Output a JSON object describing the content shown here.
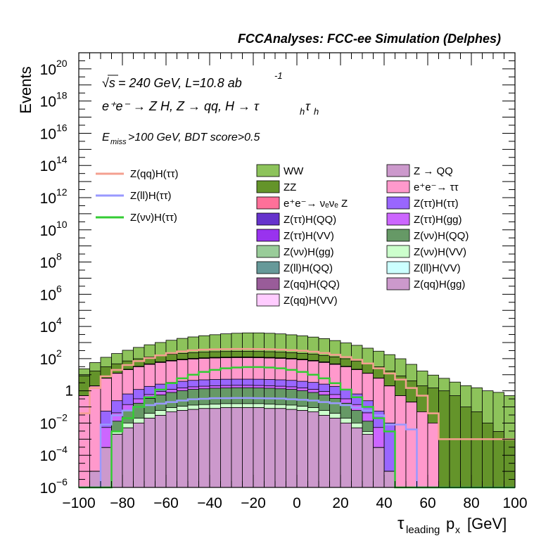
{
  "chart_data": {
    "type": "bar",
    "title": "FCCAnalyses: FCC-ee Simulation (Delphes)",
    "xlabel_main": "τ",
    "xlabel_sub": "leading",
    "xlabel_var": "p",
    "xlabel_varsub": "x",
    "xlabel_unit": "[GeV]",
    "ylabel": "Events",
    "xlim": [
      -100,
      100
    ],
    "ylim": [
      1e-06,
      1e+21
    ],
    "yscale": "log",
    "bin_width": 5,
    "x_ticks": [
      -100,
      -80,
      -60,
      -40,
      -20,
      0,
      20,
      40,
      60,
      80,
      100
    ],
    "x_tick_labels": [
      "−100",
      "−80",
      "−60",
      "−40",
      "−20",
      "0",
      "20",
      "40",
      "60",
      "80",
      "100"
    ],
    "y_ticks": [
      {
        "base": "10",
        "exp": "−6",
        "value": 1e-06
      },
      {
        "base": "10",
        "exp": "−4",
        "value": 0.0001
      },
      {
        "base": "10",
        "exp": "−2",
        "value": 0.01
      },
      {
        "base": "1",
        "exp": "",
        "value": 1
      },
      {
        "base": "10",
        "exp": "2",
        "value": 100.0
      },
      {
        "base": "10",
        "exp": "4",
        "value": 10000.0
      },
      {
        "base": "10",
        "exp": "6",
        "value": 1000000.0
      },
      {
        "base": "10",
        "exp": "8",
        "value": 100000000.0
      },
      {
        "base": "10",
        "exp": "10",
        "value": 10000000000.0
      },
      {
        "base": "10",
        "exp": "12",
        "value": 1000000000000.0
      },
      {
        "base": "10",
        "exp": "14",
        "value": 100000000000000.0
      },
      {
        "base": "10",
        "exp": "16",
        "value": 1e+16
      },
      {
        "base": "10",
        "exp": "18",
        "value": 1e+18
      },
      {
        "base": "10",
        "exp": "20",
        "value": 1e+20
      }
    ],
    "annotations": {
      "line1_sqrt": "√s",
      "line1_rest": " = 240 GeV, L=10.8 ab",
      "line1_exp": "-1",
      "line2": "e⁺e⁻ → Z H, Z → qq, H → τ",
      "line2_sub1": "h",
      "line2_tau": "τ",
      "line2_sub2": "h",
      "line3_e": "E",
      "line3_sub": "miss",
      "line3_rest": ">100 GeV, BDT score>0.5"
    },
    "signal_series": [
      {
        "name": "Z(qq)H(ττ)",
        "color": "#f4a090",
        "width": 2.5,
        "values": [
          0.04,
          1.5,
          8,
          20,
          40,
          70,
          110,
          160,
          220,
          280,
          330,
          360,
          380,
          390,
          400,
          400,
          395,
          385,
          365,
          340,
          310,
          270,
          225,
          175,
          125,
          85,
          50,
          25,
          12,
          5,
          1.5,
          0.5,
          0.04,
          0.001,
          0.001,
          0.001,
          0.001,
          0.001,
          0.001,
          0.001
        ]
      },
      {
        "name": "Z(ll)H(ττ)",
        "color": "#9999ff",
        "width": 2.5,
        "values": [
          1e-07,
          1e-07,
          0.008,
          0.03,
          0.06,
          0.1,
          0.13,
          0.16,
          0.2,
          0.25,
          0.3,
          0.32,
          0.35,
          0.35,
          0.36,
          0.36,
          0.35,
          0.34,
          0.33,
          0.3,
          0.28,
          0.25,
          0.2,
          0.17,
          0.13,
          0.09,
          0.06,
          0.03,
          0.008,
          0.008,
          0.004,
          1e-07,
          1e-07,
          1e-07,
          1e-07,
          1e-07,
          1e-07,
          1e-07,
          1e-07,
          1e-07
        ]
      },
      {
        "name": "Z(νν)H(ττ)",
        "color": "#33cc33",
        "width": 2.5,
        "values": [
          1e-07,
          1e-07,
          1e-07,
          0.003,
          0.02,
          0.1,
          0.4,
          1.2,
          3,
          6,
          10,
          15,
          20,
          25,
          28,
          30,
          30,
          28,
          25,
          20,
          15,
          10,
          6,
          3,
          1.2,
          0.4,
          0.1,
          0.02,
          0.003,
          1e-07,
          1e-07,
          1e-07,
          1e-07,
          1e-07,
          1e-07,
          1e-07,
          1e-07,
          1e-07,
          1e-07,
          1e-07
        ]
      }
    ],
    "stack_series": [
      {
        "name": "WW",
        "color": "#8dc35b",
        "values": [
          15,
          40,
          90,
          160,
          260,
          400,
          600,
          850,
          1200,
          1600,
          2000,
          2400,
          2800,
          3200,
          3500,
          3700,
          3700,
          3500,
          3200,
          2800,
          2400,
          2000,
          1600,
          1200,
          850,
          600,
          400,
          260,
          160,
          90,
          40,
          15,
          8,
          5,
          3,
          2,
          1.5,
          1,
          0.8,
          0.5
        ]
      },
      {
        "name": "ZZ",
        "color": "#64942a",
        "values": [
          8,
          15,
          25,
          35,
          50,
          65,
          80,
          95,
          110,
          120,
          130,
          140,
          150,
          155,
          160,
          160,
          155,
          150,
          140,
          130,
          120,
          110,
          95,
          80,
          65,
          50,
          35,
          25,
          15,
          8,
          4,
          2,
          1.5,
          1,
          0.5,
          0.1,
          0.05,
          0.01,
          0.003,
          0.001
        ]
      },
      {
        "name": "e⁺e⁻→ νₑνₑ Z",
        "color": "#ff7099",
        "values": [
          0.001,
          0.005,
          0.02,
          0.05,
          0.1,
          0.2,
          0.35,
          0.5,
          0.7,
          0.9,
          1.1,
          1.3,
          1.5,
          1.6,
          1.7,
          1.7,
          1.6,
          1.5,
          1.3,
          1.1,
          0.9,
          0.7,
          0.5,
          0.35,
          0.2,
          0.1,
          0.05,
          0.02,
          0.005,
          0.001,
          0,
          0,
          0,
          0,
          0,
          0,
          0,
          0,
          0,
          0
        ]
      },
      {
        "name": "Z(ττ)H(QQ)",
        "color": "#6633cc",
        "values": [
          0,
          0,
          0.05,
          0.3,
          0.8,
          1.5,
          2.5,
          3.5,
          4.5,
          5.5,
          6,
          6.5,
          7,
          7.2,
          7.3,
          7.3,
          7.2,
          7,
          6.5,
          6,
          5.5,
          4.5,
          3.5,
          2.5,
          1.5,
          0.8,
          0.3,
          0.05,
          0.01,
          0,
          0,
          0,
          0,
          0,
          0,
          0,
          0,
          0,
          0,
          0
        ]
      },
      {
        "name": "Z(ττ)H(VV)",
        "color": "#9933ee",
        "values": [
          0,
          0,
          0.01,
          0.05,
          0.15,
          0.3,
          0.5,
          0.7,
          0.9,
          1,
          1.1,
          1.2,
          1.3,
          1.35,
          1.4,
          1.4,
          1.35,
          1.3,
          1.2,
          1.1,
          1,
          0.9,
          0.7,
          0.5,
          0.3,
          0.15,
          0.05,
          0.01,
          0.002,
          0,
          0,
          0,
          0,
          0,
          0,
          0,
          0,
          0,
          0,
          0
        ]
      },
      {
        "name": "Z(νν)H(gg)",
        "color": "#99cc99",
        "values": [
          0,
          0,
          0,
          0.005,
          0.02,
          0.05,
          0.1,
          0.15,
          0.2,
          0.25,
          0.3,
          0.3,
          0.32,
          0.33,
          0.33,
          0.33,
          0.33,
          0.32,
          0.3,
          0.3,
          0.25,
          0.2,
          0.15,
          0.1,
          0.05,
          0.02,
          0.005,
          0,
          0,
          0,
          0,
          0,
          0,
          0,
          0,
          0,
          0,
          0,
          0,
          0
        ]
      },
      {
        "name": "Z(ll)H(QQ)",
        "color": "#669999",
        "values": [
          0,
          0,
          0.003,
          0.02,
          0.05,
          0.08,
          0.004,
          0.06,
          0.08,
          0.0006,
          0.08,
          0.06,
          0.09,
          0.07,
          0.08,
          0.008,
          0.09,
          0.07,
          0.05,
          0.06,
          0.09,
          0.0008,
          0.07,
          0.05,
          0.06,
          0.08,
          0.004,
          0.06,
          0.02,
          0.003,
          0,
          0,
          0,
          0,
          0,
          0,
          0,
          0,
          0,
          0
        ]
      },
      {
        "name": "Z(qq)H(QQ)",
        "color": "#995c99",
        "values": [
          0,
          0,
          0,
          0,
          0,
          0,
          0,
          0,
          0,
          0,
          0,
          0,
          0,
          0,
          0,
          0.008,
          0,
          0,
          0.008,
          0,
          0,
          0,
          0,
          0,
          0,
          0,
          0,
          0,
          0,
          0,
          0,
          0,
          0,
          0,
          0,
          0,
          0,
          0,
          0,
          0
        ]
      },
      {
        "name": "Z(qq)H(VV)",
        "color": "#ffccff",
        "values": [
          0,
          0,
          0,
          0,
          0,
          0,
          0,
          0,
          0,
          0,
          0,
          0,
          0,
          0,
          0,
          0,
          0,
          0,
          0,
          0,
          0,
          0,
          0,
          0,
          0,
          0,
          0,
          0,
          0,
          0,
          0,
          0,
          0,
          0,
          0,
          0,
          0,
          0,
          0,
          0
        ]
      },
      {
        "name": "Z → QQ",
        "color": "#cc99cc",
        "values": [
          0,
          0,
          0.004,
          0.01,
          0.02,
          0.03,
          0.04,
          0.05,
          0.06,
          0.07,
          0.08,
          0.08,
          0.09,
          0.09,
          0.09,
          0.09,
          0.09,
          0.09,
          0.08,
          0.08,
          0.07,
          0.06,
          0.05,
          0.04,
          0.03,
          0.02,
          0.01,
          0.004,
          0,
          0,
          0,
          0,
          0,
          0,
          0,
          0,
          0,
          0,
          0,
          0
        ]
      },
      {
        "name": "e⁺e⁻→ ττ",
        "color": "#ff99cc",
        "values": [
          0.5,
          2,
          6,
          12,
          20,
          30,
          42,
          55,
          68,
          80,
          90,
          98,
          104,
          108,
          110,
          110,
          108,
          104,
          98,
          90,
          80,
          68,
          55,
          42,
          30,
          20,
          12,
          6,
          2,
          0.5,
          0.2,
          0.05,
          0.01,
          0,
          0,
          0,
          0,
          0,
          0,
          0
        ]
      },
      {
        "name": "Z(ττ)H(ττ)",
        "color": "#9966ff",
        "values": [
          0,
          0,
          0.05,
          0.2,
          0.5,
          0.9,
          1.3,
          1.7,
          2.1,
          2.4,
          2.7,
          2.9,
          3,
          3.1,
          3.1,
          3.1,
          3.1,
          3,
          2.9,
          2.7,
          2.4,
          2.1,
          1.7,
          1.3,
          0.9,
          0.5,
          0.2,
          0.05,
          0.01,
          0,
          0,
          0,
          0,
          0,
          0,
          0,
          0,
          0,
          0,
          0
        ]
      },
      {
        "name": "Z(ττ)H(gg)",
        "color": "#cc66ff",
        "values": [
          0,
          0,
          0.005,
          0.03,
          0.08,
          0.15,
          0.25,
          0.35,
          0.45,
          0.5,
          0.55,
          0.6,
          0.62,
          0.65,
          0.65,
          0.65,
          0.65,
          0.62,
          0.6,
          0.55,
          0.5,
          0.45,
          0.35,
          0.25,
          0.15,
          0.08,
          0.03,
          0.005,
          0,
          0,
          0,
          0,
          0,
          0,
          0,
          0,
          0,
          0,
          0,
          0
        ]
      },
      {
        "name": "Z(νν)H(QQ)",
        "color": "#669966",
        "values": [
          0,
          0,
          0,
          0.01,
          0.05,
          0.15,
          0.3,
          0.5,
          0.7,
          0.9,
          1.1,
          1.2,
          1.3,
          1.35,
          1.4,
          1.4,
          1.35,
          1.3,
          1.2,
          1.1,
          0.9,
          0.7,
          0.5,
          0.3,
          0.15,
          0.05,
          0.01,
          0,
          0,
          0,
          0,
          0,
          0,
          0,
          0,
          0,
          0,
          0,
          0,
          0
        ]
      },
      {
        "name": "Z(νν)H(VV)",
        "color": "#ccffcc",
        "values": [
          0,
          0,
          0,
          0.001,
          0.005,
          0.01,
          0.02,
          0.03,
          0.04,
          0.05,
          0.06,
          0.06,
          0.07,
          0.07,
          0.07,
          0.07,
          0.07,
          0.07,
          0.06,
          0.06,
          0.05,
          0.04,
          0.03,
          0.02,
          0.01,
          0.005,
          0.001,
          0,
          0,
          0,
          0,
          0,
          0,
          0,
          0,
          0,
          0,
          0,
          0,
          0
        ]
      },
      {
        "name": "Z(ll)H(VV)",
        "color": "#ccffff",
        "values": [
          0,
          0,
          0,
          3e-05,
          5e-05,
          6e-05,
          0.0001,
          8e-05,
          0.0001,
          5e-05,
          8e-05,
          0.00012,
          8e-05,
          0.0001,
          5e-05,
          8e-05,
          0.0001,
          0.00012,
          8e-05,
          0.0001,
          6e-05,
          0.00012,
          0.0001,
          8e-05,
          5e-05,
          3e-05,
          0,
          0,
          0,
          0,
          0,
          0,
          0,
          0,
          0,
          0,
          0,
          0,
          0,
          0
        ]
      },
      {
        "name": "Z(qq)H(gg)",
        "color": "#cc99cc",
        "values": [
          1e-06,
          1e-05,
          0.0003,
          0.002,
          0.005,
          0.01,
          0.02,
          0.03,
          0.05,
          0.06,
          0.07,
          0.08,
          0.08,
          0.09,
          0.09,
          0.09,
          0.09,
          0.08,
          0.08,
          0.07,
          0.06,
          0.05,
          0.03,
          0.02,
          0.01,
          0.005,
          0.002,
          0.0003,
          1e-05,
          1e-06,
          0,
          0,
          0,
          0,
          0,
          0,
          0,
          0,
          0,
          0
        ]
      }
    ],
    "legend_col1": [
      "Z(qq)H(ττ)",
      "Z(ll)H(ττ)",
      "Z(νν)H(ττ)"
    ],
    "legend_col2": [
      "WW",
      "ZZ",
      "e⁺e⁻→ νₑνₑ Z",
      "Z(ττ)H(QQ)",
      "Z(ττ)H(VV)",
      "Z(νν)H(gg)",
      "Z(ll)H(QQ)",
      "Z(qq)H(QQ)",
      "Z(qq)H(VV)"
    ],
    "legend_col3": [
      "Z → QQ",
      "e⁺e⁻→ ττ",
      "Z(ττ)H(ττ)",
      "Z(ττ)H(gg)",
      "Z(νν)H(QQ)",
      "Z(νν)H(VV)",
      "Z(ll)H(VV)",
      "Z(qq)H(gg)"
    ],
    "legend_placement": "top"
  }
}
